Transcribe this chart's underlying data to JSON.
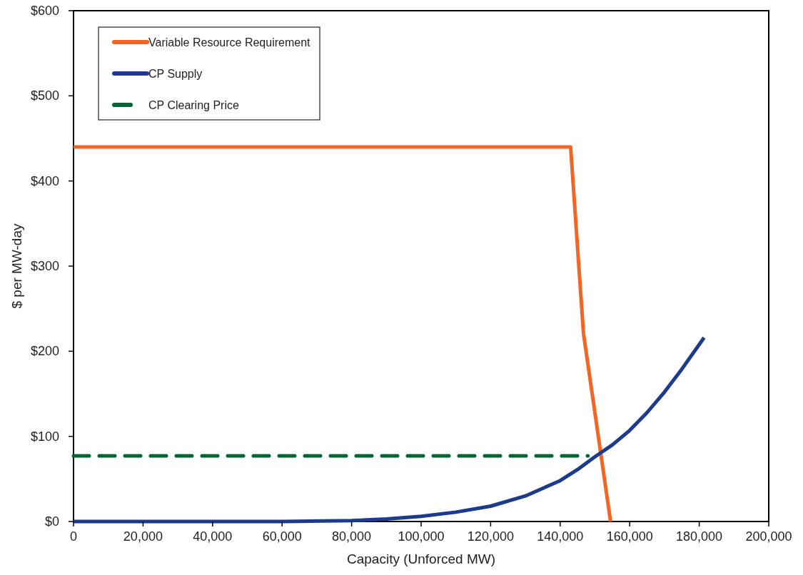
{
  "chart_data": {
    "type": "line",
    "xlabel": "Capacity (Unforced MW)",
    "ylabel": "$ per MW-day",
    "xlim": [
      0,
      200000
    ],
    "xticks": [
      {
        "value": 0,
        "label": "0"
      },
      {
        "value": 20000,
        "label": "20,000"
      },
      {
        "value": 40000,
        "label": "40,000"
      },
      {
        "value": 60000,
        "label": "60,000"
      },
      {
        "value": 80000,
        "label": "80,000"
      },
      {
        "value": 100000,
        "label": "100,000"
      },
      {
        "value": 120000,
        "label": "120,000"
      },
      {
        "value": 140000,
        "label": "140,000"
      },
      {
        "value": 160000,
        "label": "160,000"
      },
      {
        "value": 180000,
        "label": "180,000"
      },
      {
        "value": 200000,
        "label": "200,000"
      }
    ],
    "ylim": [
      0,
      600
    ],
    "yticks": [
      {
        "value": 0,
        "label": "$0"
      },
      {
        "value": 100,
        "label": "$100"
      },
      {
        "value": 200,
        "label": "$200"
      },
      {
        "value": 300,
        "label": "$300"
      },
      {
        "value": 400,
        "label": "$400"
      },
      {
        "value": 500,
        "label": "$500"
      },
      {
        "value": 600,
        "label": "$600"
      }
    ],
    "grid": false,
    "legend": "top left",
    "series": [
      {
        "name": "Variable Resource Requirement",
        "color": "#f26522",
        "x": [
          0,
          143000,
          146700,
          154500
        ],
        "values": [
          440,
          440,
          221,
          0
        ],
        "line_style": "solid"
      },
      {
        "name": "CP Supply",
        "color": "#1d3b8c",
        "x": [
          0,
          60000,
          80000,
          90000,
          100000,
          110000,
          120000,
          130000,
          135000,
          140000,
          145000,
          150000,
          155000,
          160000,
          165000,
          170000,
          175000,
          181400
        ],
        "values": [
          0,
          0,
          1,
          3,
          6,
          11,
          18,
          30,
          39,
          48,
          61,
          76,
          90,
          107,
          128,
          152,
          179,
          216
        ],
        "line_style": "solid"
      },
      {
        "name": "CP Clearing Price",
        "color": "#006633",
        "x": [
          0,
          148000
        ],
        "values": [
          77,
          77
        ],
        "line_style": "dashed"
      }
    ]
  }
}
